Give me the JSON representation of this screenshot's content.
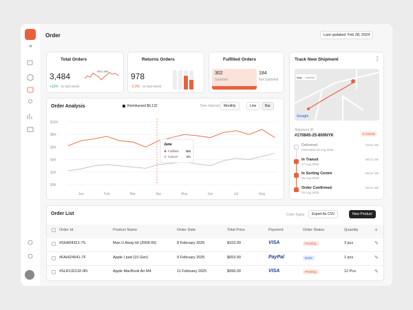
{
  "header": {
    "title": "Order",
    "last_updated": "Last updated: Feb 28, 2024"
  },
  "stats": [
    {
      "title": "Total Orders",
      "value": "3,484",
      "change": "+11%",
      "change_note": "vs last week",
      "badge": "+$12,188"
    },
    {
      "title": "Returns Orders",
      "value": "978",
      "change": "-3.3%",
      "change_note": "vs last week"
    },
    {
      "title": "Fulfilled Orders",
      "items": [
        {
          "value": "302",
          "label": "Satisfied"
        },
        {
          "value": "184",
          "label": "Not Satisfied"
        }
      ]
    }
  ],
  "chart_controls": {
    "legend_note": "Reimbursed $6,132",
    "interval_label": "Time Interval",
    "interval": "Monthly",
    "modes": [
      "Line",
      "Bar"
    ]
  },
  "chart_data": {
    "type": "line",
    "title": "Order Analysis",
    "x": [
      -0.5,
      0,
      0.5,
      1,
      1.5,
      2,
      2.5,
      3,
      3.5,
      4,
      4.5,
      5,
      5.5,
      6,
      6.5,
      7,
      7.5
    ],
    "series": [
      {
        "name": "Fulfilled",
        "color": "#e8613c",
        "values": [
          6200,
          7000,
          7300,
          7700,
          7000,
          6800,
          6000,
          7000,
          7500,
          8000,
          7800,
          7500,
          8300,
          8600,
          8000,
          8800,
          7500
        ]
      },
      {
        "name": "Cancel",
        "color": "#bdbdbd",
        "values": [
          2200,
          2500,
          3000,
          3200,
          3000,
          2800,
          2600,
          3200,
          3400,
          3600,
          3300,
          3000,
          3800,
          4200,
          4000,
          4500,
          5000
        ]
      }
    ],
    "xlim": [
      -0.55,
      7.65
    ],
    "xticks": [
      {
        "value": 0,
        "label": "Jan"
      },
      {
        "value": 1,
        "label": "Feb"
      },
      {
        "value": 2,
        "label": "Mar"
      },
      {
        "value": 3,
        "label": "Apr"
      },
      {
        "value": 4,
        "label": "May"
      },
      {
        "value": 5,
        "label": "Jun"
      },
      {
        "value": 6,
        "label": "Jul"
      },
      {
        "value": 7,
        "label": "Aug"
      }
    ],
    "ylim": [
      0,
      10000
    ],
    "yticks": [
      {
        "value": 0,
        "label": "$0K"
      },
      {
        "value": 2000,
        "label": "$2K"
      },
      {
        "value": 4000,
        "label": "$4K"
      },
      {
        "value": 6000,
        "label": "$6K"
      },
      {
        "value": 8000,
        "label": "$8K"
      },
      {
        "value": 10000,
        "label": "$10K"
      }
    ],
    "grid": true,
    "tooltip": {
      "label": "June",
      "values": [
        "356",
        "3%"
      ]
    }
  },
  "shipment": {
    "title": "Track New Shipment",
    "map_buttons": [
      "Map",
      "Satellite"
    ],
    "map_brand": "Google",
    "id_label": "Shipment ID",
    "id": "#170845-25-800NYK",
    "status": "In transit",
    "steps": [
      {
        "title": "Delivered",
        "date": "Estimated 28 Aug 2025",
        "time": "10:01 AM"
      },
      {
        "title": "In Transit",
        "date": "27 Aug 2025",
        "time": "08:11 AM"
      },
      {
        "title": "In Sorting Centre",
        "date": "26 Aug 2025",
        "time": "06:31 AM"
      },
      {
        "title": "Order Confirmed",
        "date": "25 Aug 2025",
        "time": "06:21 AM"
      }
    ]
  },
  "orders": {
    "title": "Order List",
    "buttons": [
      "Colm Types",
      "Export As CSV",
      "New Product"
    ],
    "columns": [
      "Order Id",
      "Product Name",
      "Order Date",
      "Total Price",
      "Payment",
      "Order Status",
      "Quantity"
    ],
    "rows": [
      [
        "#SHA54321-7S",
        "Man U Away kit (2008-09)",
        "8 February 2025",
        "$103.00",
        "VISA",
        "Pending",
        "3 pcs"
      ],
      [
        "#FAHI24541-7F",
        "Apple I pad (10 Gen)",
        "9 February 2025",
        "$653.00",
        "PayPal",
        "Done",
        "1 pcs"
      ],
      [
        "#SLR132132-9N",
        "Apple MacBook Air M4",
        "11 February 2025",
        "$999.00",
        "VISA",
        "Pending",
        "12 Pcs"
      ]
    ]
  }
}
